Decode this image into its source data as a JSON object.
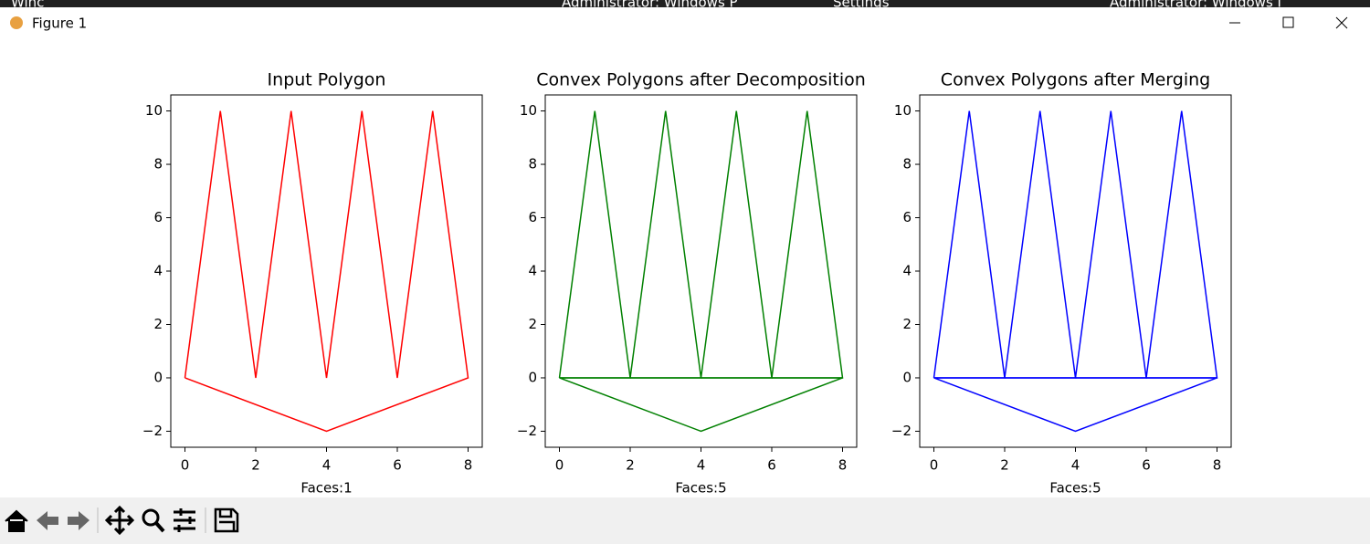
{
  "taskbar": {
    "tabs": [
      "Winc",
      "Administrator: Windows P",
      "Settings",
      "Administrator: Windows I"
    ]
  },
  "window": {
    "title": "Figure 1"
  },
  "chart_data": [
    {
      "type": "line",
      "title": "Input Polygon",
      "xlabel": "Faces:1",
      "xlim": [
        -0.4,
        8.4
      ],
      "ylim": [
        -2.6,
        10.6
      ],
      "xticks": [
        0,
        2,
        4,
        6,
        8
      ],
      "yticks": [
        {
          "value": -2,
          "label": "−2"
        },
        0,
        2,
        4,
        6,
        8,
        10
      ],
      "series": [
        {
          "color": "#ff0000",
          "x": [
            0,
            1,
            2,
            3,
            4,
            5,
            6,
            7,
            8,
            4,
            0
          ],
          "values": [
            0,
            10,
            0,
            10,
            0,
            10,
            0,
            10,
            0,
            -2,
            0
          ]
        }
      ]
    },
    {
      "type": "line",
      "title": "Convex Polygons after Decomposition",
      "xlabel": "Faces:5",
      "xlim": [
        -0.4,
        8.4
      ],
      "ylim": [
        -2.6,
        10.6
      ],
      "xticks": [
        0,
        2,
        4,
        6,
        8
      ],
      "yticks": [
        {
          "value": -2,
          "label": "−2"
        },
        0,
        2,
        4,
        6,
        8,
        10
      ],
      "series": [
        {
          "color": "#008000",
          "x": [
            0,
            1,
            2,
            0
          ],
          "values": [
            0,
            10,
            0,
            0
          ]
        },
        {
          "color": "#008000",
          "x": [
            2,
            3,
            4,
            2
          ],
          "values": [
            0,
            10,
            0,
            0
          ]
        },
        {
          "color": "#008000",
          "x": [
            4,
            5,
            6,
            4
          ],
          "values": [
            0,
            10,
            0,
            0
          ]
        },
        {
          "color": "#008000",
          "x": [
            6,
            7,
            8,
            6
          ],
          "values": [
            0,
            10,
            0,
            0
          ]
        },
        {
          "color": "#008000",
          "x": [
            0,
            8,
            4,
            0
          ],
          "values": [
            0,
            0,
            -2,
            0
          ]
        }
      ]
    },
    {
      "type": "line",
      "title": "Convex Polygons after Merging",
      "xlabel": "Faces:5",
      "xlim": [
        -0.4,
        8.4
      ],
      "ylim": [
        -2.6,
        10.6
      ],
      "xticks": [
        0,
        2,
        4,
        6,
        8
      ],
      "yticks": [
        {
          "value": -2,
          "label": "−2"
        },
        0,
        2,
        4,
        6,
        8,
        10
      ],
      "series": [
        {
          "color": "#0000ff",
          "x": [
            0,
            1,
            2,
            0
          ],
          "values": [
            0,
            10,
            0,
            0
          ]
        },
        {
          "color": "#0000ff",
          "x": [
            2,
            3,
            4,
            2
          ],
          "values": [
            0,
            10,
            0,
            0
          ]
        },
        {
          "color": "#0000ff",
          "x": [
            4,
            5,
            6,
            4
          ],
          "values": [
            0,
            10,
            0,
            0
          ]
        },
        {
          "color": "#0000ff",
          "x": [
            6,
            7,
            8,
            6
          ],
          "values": [
            0,
            10,
            0,
            0
          ]
        },
        {
          "color": "#0000ff",
          "x": [
            0,
            8,
            4,
            0
          ],
          "values": [
            0,
            0,
            -2,
            0
          ]
        }
      ]
    }
  ]
}
